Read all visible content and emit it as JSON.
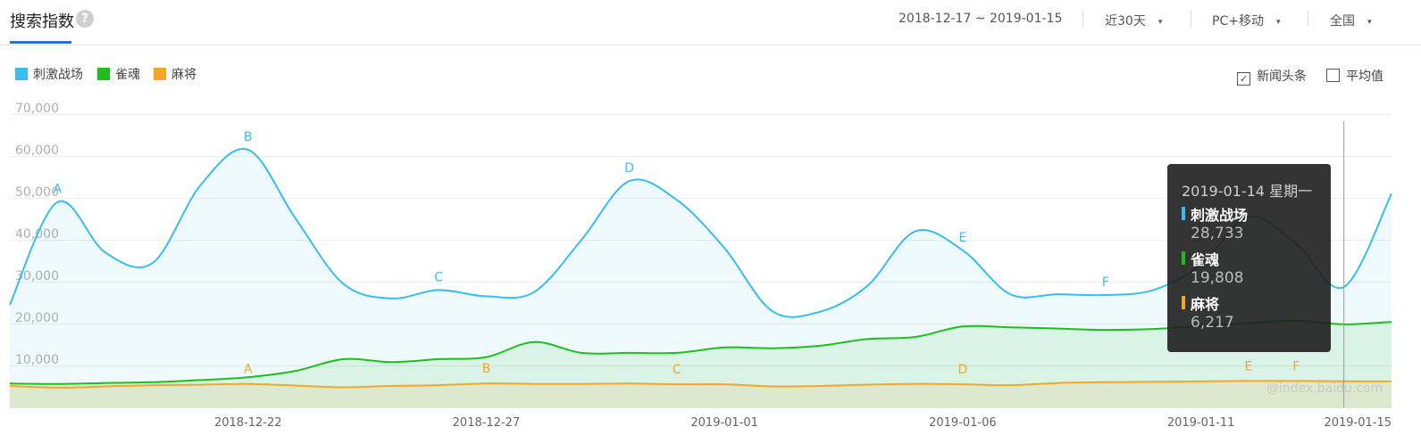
{
  "header": {
    "title": "搜索指数",
    "help_icon": "?",
    "date_range": "2018-12-17 ~ 2019-01-15",
    "period": "近30天",
    "device": "PC+移动",
    "region": "全国",
    "caret": "▾"
  },
  "legend": [
    {
      "name": "刺激战场",
      "color": "#38bdf0"
    },
    {
      "name": "雀魂",
      "color": "#1dbf1d"
    },
    {
      "name": "麻将",
      "color": "#f5a623"
    }
  ],
  "options": {
    "news_label": "新闻头条",
    "news_checked": true,
    "avg_label": "平均值",
    "avg_checked": false,
    "check_mark": "✓"
  },
  "chart_data": {
    "type": "line",
    "ylim": [
      0,
      70000
    ],
    "y_ticks": [
      10000,
      20000,
      30000,
      40000,
      50000,
      60000,
      70000
    ],
    "y_tick_labels": [
      "10,000",
      "20,000",
      "30,000",
      "40,000",
      "50,000",
      "60,000",
      "70,000"
    ],
    "x": [
      "2018-12-17",
      "2018-12-18",
      "2018-12-19",
      "2018-12-20",
      "2018-12-21",
      "2018-12-22",
      "2018-12-23",
      "2018-12-24",
      "2018-12-25",
      "2018-12-26",
      "2018-12-27",
      "2018-12-28",
      "2018-12-29",
      "2018-12-30",
      "2018-12-31",
      "2019-01-01",
      "2019-01-02",
      "2019-01-03",
      "2019-01-04",
      "2019-01-05",
      "2019-01-06",
      "2019-01-07",
      "2019-01-08",
      "2019-01-09",
      "2019-01-10",
      "2019-01-11",
      "2019-01-12",
      "2019-01-13",
      "2019-01-14",
      "2019-01-15"
    ],
    "x_tick_labels": [
      "2018-12-22",
      "2018-12-27",
      "2019-01-01",
      "2019-01-06",
      "2019-01-11",
      "2019-01-15"
    ],
    "x_tick_dates": [
      "2018-12-22",
      "2018-12-27",
      "2019-01-01",
      "2019-01-06",
      "2019-01-11",
      "2019-01-15"
    ],
    "series": [
      {
        "name": "刺激战场",
        "color": "#38bdf0",
        "values": [
          24500,
          49000,
          37000,
          34500,
          53000,
          61500,
          45000,
          29500,
          26000,
          28000,
          26500,
          27500,
          40000,
          54000,
          49500,
          38000,
          23000,
          22800,
          29000,
          42000,
          37500,
          27000,
          27000,
          26800,
          28000,
          34000,
          45500,
          39000,
          28733,
          51000
        ]
      },
      {
        "name": "雀魂",
        "color": "#1dbf1d",
        "values": [
          5700,
          5600,
          5800,
          6000,
          6500,
          7200,
          8700,
          11500,
          10800,
          11500,
          12000,
          15600,
          13000,
          13000,
          13000,
          14300,
          14100,
          14700,
          16300,
          16800,
          19300,
          19100,
          18800,
          18500,
          18700,
          19400,
          20100,
          20700,
          19808,
          20400
        ]
      },
      {
        "name": "麻将",
        "color": "#f5a623",
        "values": [
          5100,
          4700,
          5000,
          5300,
          5400,
          5600,
          5200,
          4800,
          5100,
          5300,
          5700,
          5600,
          5600,
          5700,
          5500,
          5500,
          5000,
          5100,
          5400,
          5600,
          5500,
          5300,
          5800,
          6000,
          6100,
          6200,
          6300,
          6300,
          6217,
          6200
        ]
      }
    ],
    "annotations": [
      {
        "label": "A",
        "series": "刺激战场",
        "date": "2018-12-18"
      },
      {
        "label": "B",
        "series": "刺激战场",
        "date": "2018-12-22"
      },
      {
        "label": "C",
        "series": "刺激战场",
        "date": "2018-12-26"
      },
      {
        "label": "D",
        "series": "刺激战场",
        "date": "2018-12-30"
      },
      {
        "label": "E",
        "series": "刺激战场",
        "date": "2019-01-06"
      },
      {
        "label": "F",
        "series": "刺激战场",
        "date": "2019-01-09"
      },
      {
        "label": "A",
        "series": "麻将",
        "date": "2018-12-22"
      },
      {
        "label": "B",
        "series": "麻将",
        "date": "2018-12-27"
      },
      {
        "label": "C",
        "series": "麻将",
        "date": "2018-12-31"
      },
      {
        "label": "D",
        "series": "麻将",
        "date": "2019-01-06"
      },
      {
        "label": "E",
        "series": "麻将",
        "date": "2019-01-12"
      },
      {
        "label": "F",
        "series": "麻将",
        "date": "2019-01-13"
      }
    ],
    "highlight_date": "2019-01-14"
  },
  "tooltip": {
    "date": "2019-01-14 星期一",
    "items": [
      {
        "name": "刺激战场",
        "value": "28,733",
        "color": "#38bdf0"
      },
      {
        "name": "雀魂",
        "value": "19,808",
        "color": "#1dbf1d"
      },
      {
        "name": "麻将",
        "value": "6,217",
        "color": "#f5a623"
      }
    ]
  },
  "watermark": "@index.baidu.com"
}
